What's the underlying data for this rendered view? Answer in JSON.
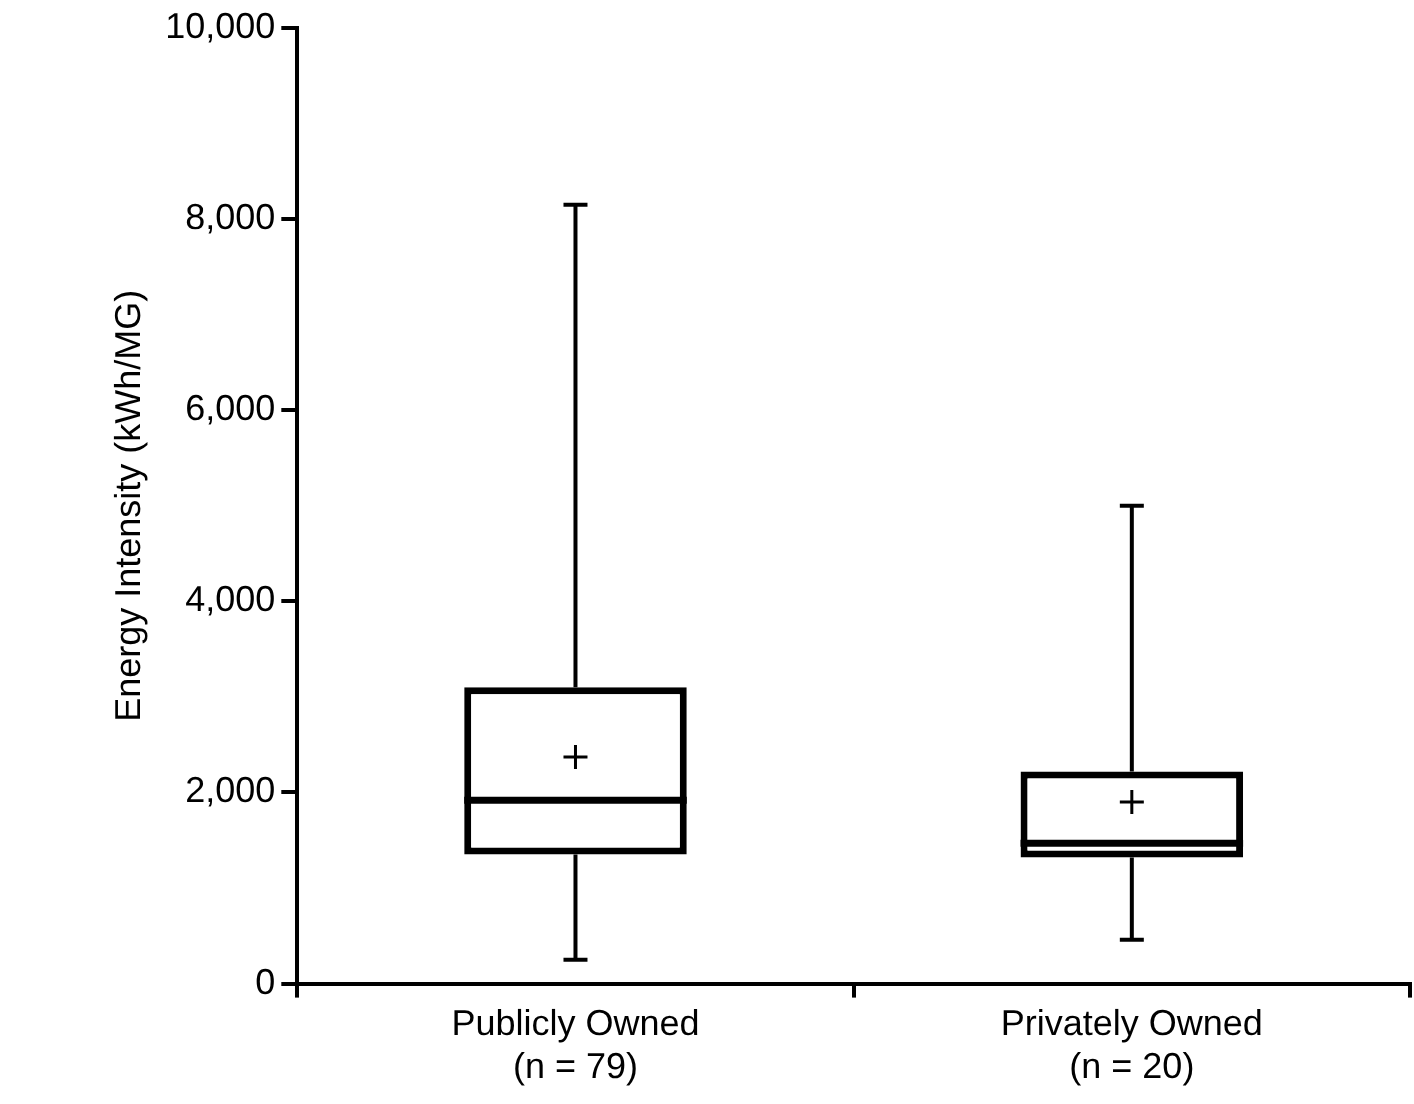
{
  "chart_data": {
    "type": "box",
    "ylabel": "Energy Intensity (kWh/MG)",
    "categories": [
      "Publicly Owned\n(n = 79)",
      "Privately Owned\n(n = 20)"
    ],
    "color": "#000000",
    "boxes": [
      {
        "low": 250,
        "q1": 1350,
        "median": 1920,
        "q3": 3100,
        "high": 8150,
        "mean": 2370
      },
      {
        "low": 460,
        "q1": 1320,
        "median": 1470,
        "q3": 2220,
        "high": 5000,
        "mean": 1900
      }
    ],
    "ylim": [
      0,
      10000
    ],
    "yticks": [
      0,
      {
        "value": 2000,
        "label": "2,000"
      },
      {
        "value": 4000,
        "label": "4,000"
      },
      {
        "value": 6000,
        "label": "6,000"
      },
      {
        "value": 8000,
        "label": "8,000"
      },
      {
        "value": 10000,
        "label": "10,000"
      }
    ],
    "grid": false,
    "legend": false
  }
}
